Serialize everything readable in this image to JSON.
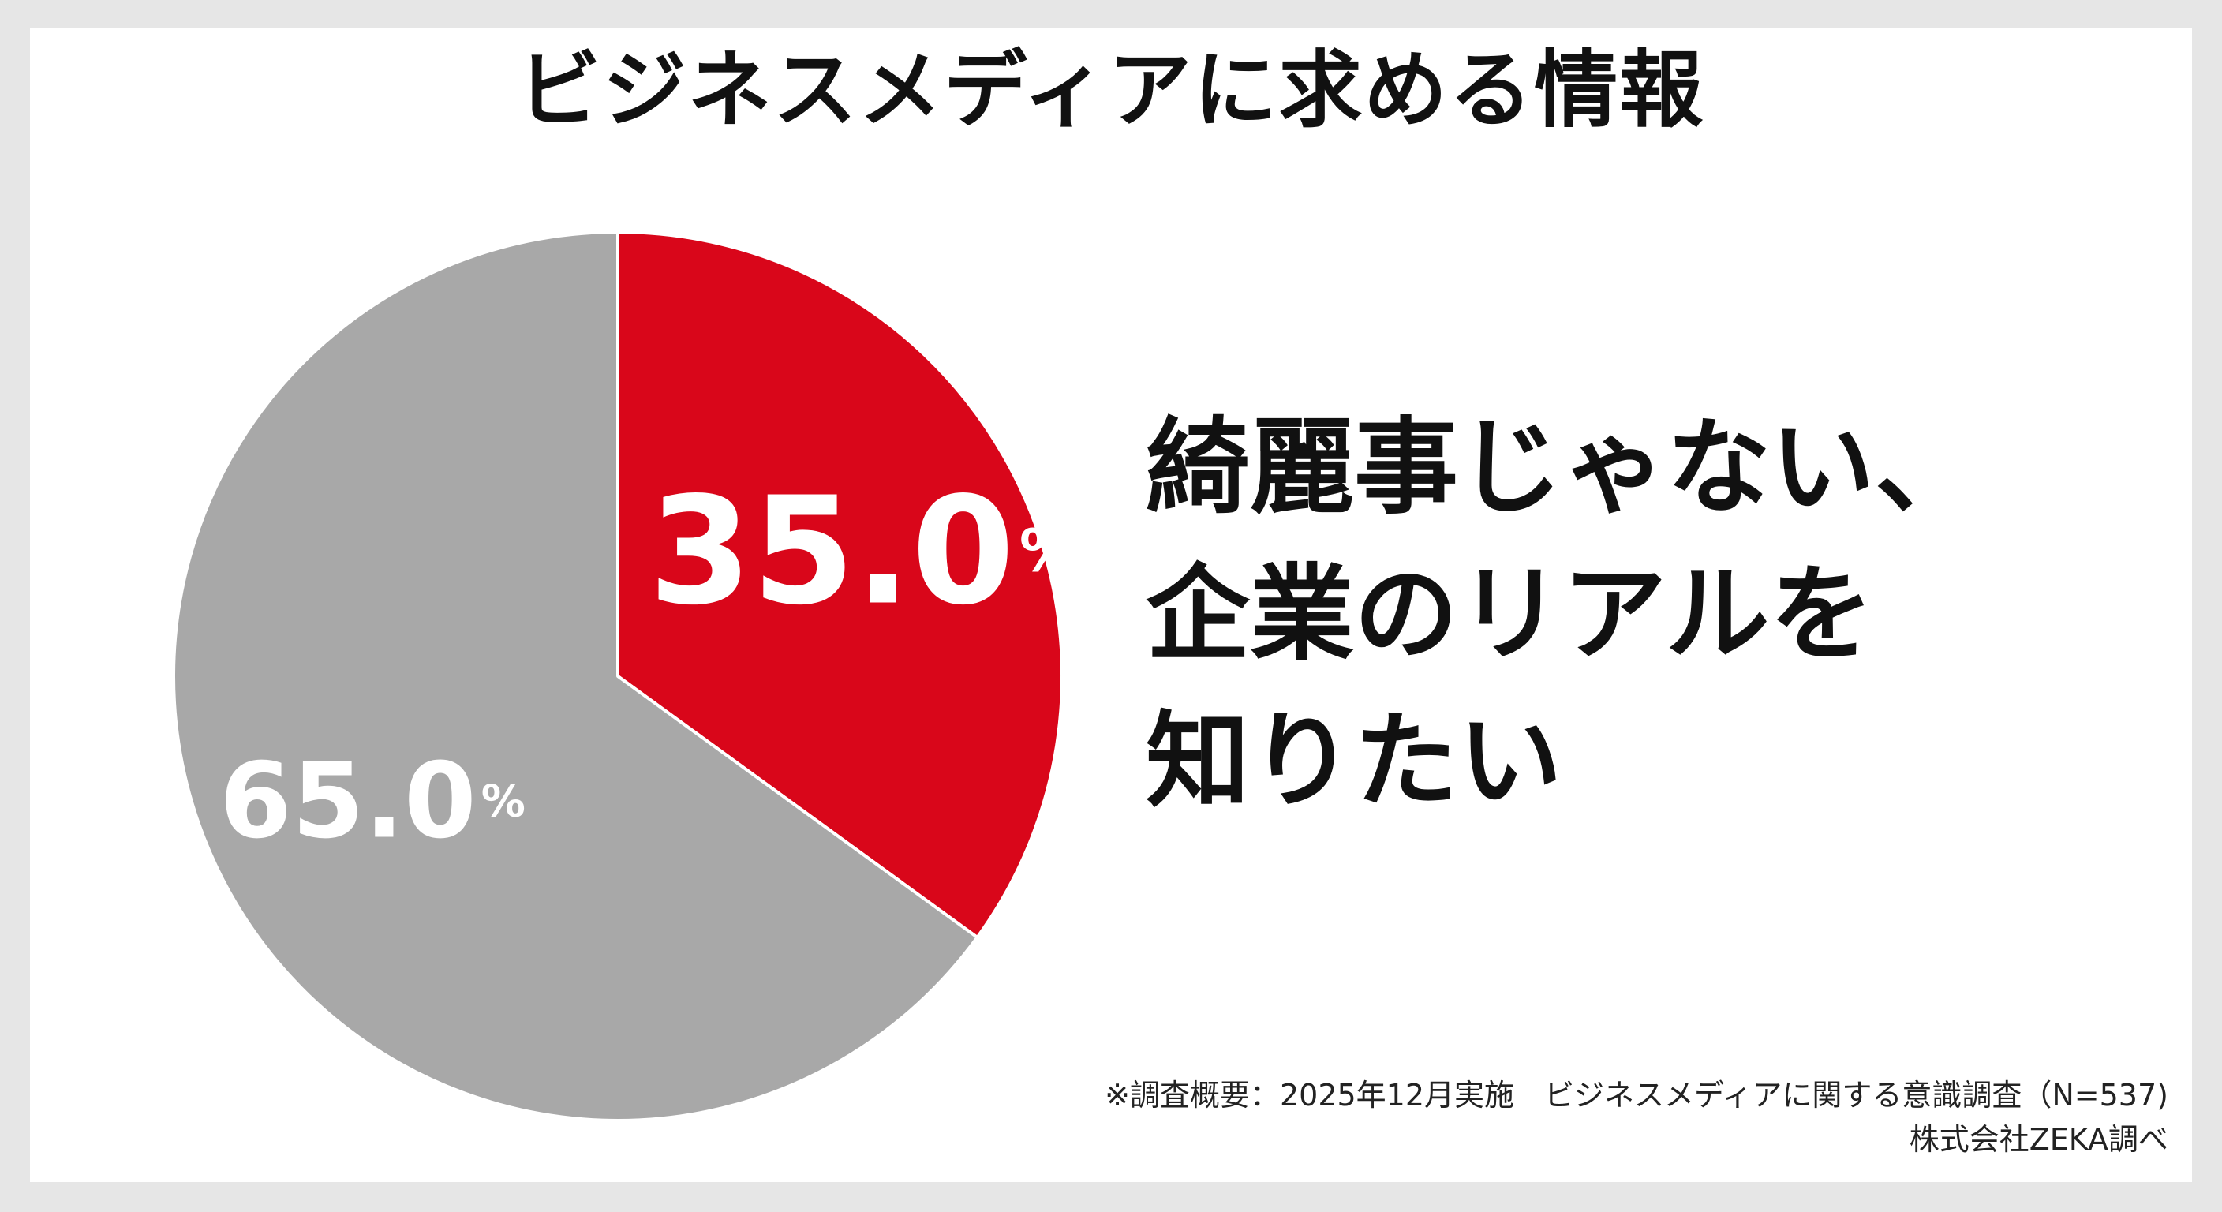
{
  "title": "ビジネスメディアに求める情報",
  "headline": {
    "lines": [
      "綺麗事じゃない、",
      "企業のリアルを",
      "知りたい"
    ]
  },
  "footnote": {
    "survey": "※調査概要：2025年12月実施　ビジネスメディアに関する意識調査（N=537)",
    "credit": "株式会社ZEKA調べ"
  },
  "chart_data": {
    "type": "pie",
    "slices": [
      {
        "value": 35.0,
        "label": "35.0",
        "unit": "%",
        "color": "#d9061a"
      },
      {
        "value": 65.0,
        "label": "65.0",
        "unit": "%",
        "color": "#a8a8a8"
      }
    ],
    "start": "top",
    "direction": "clockwise"
  }
}
